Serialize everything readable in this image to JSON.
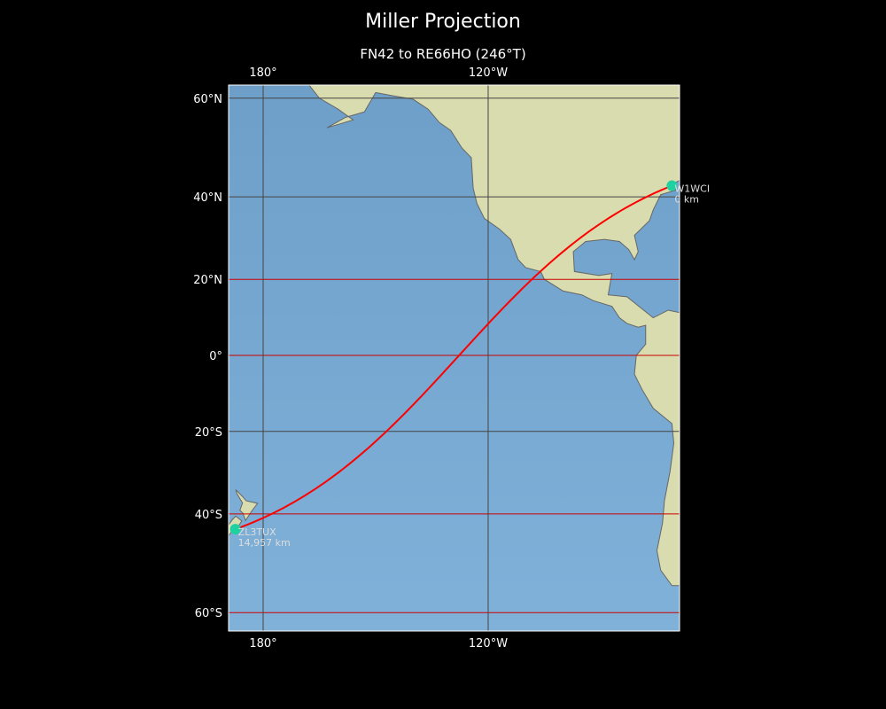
{
  "title": "Miller Projection",
  "subtitle": "FN42 to RE66HO (246°T)",
  "map": {
    "projection": "Miller",
    "extent": {
      "lon_min": 170.8,
      "lon_max": -69,
      "lat_min": -63,
      "lat_max": 62
    },
    "lon_ticks": [
      {
        "lon": 180,
        "label": "180°"
      },
      {
        "lon": -120,
        "label": "120°W"
      }
    ],
    "lat_ticks": [
      {
        "lat": 60,
        "label": "60°N",
        "color": "#444444"
      },
      {
        "lat": 40,
        "label": "40°N",
        "color": "#444444"
      },
      {
        "lat": 20,
        "label": "20°N",
        "color": "#cc0000"
      },
      {
        "lat": 0,
        "label": "0°",
        "color": "#cc0000"
      },
      {
        "lat": -20,
        "label": "20°S",
        "color": "#444444"
      },
      {
        "lat": -40,
        "label": "40°S",
        "color": "#cc0000"
      },
      {
        "lat": -60,
        "label": "60°S",
        "color": "#cc0000"
      }
    ],
    "colors": {
      "ocean": "#6fa3cc",
      "land": "#d9dcae",
      "route": "#ff0000",
      "marker": "#1fd1a0"
    },
    "route": {
      "from": "FN42",
      "to": "RE66HO",
      "bearing": "246°T"
    },
    "stations": [
      {
        "call": "W1WCI",
        "distance": "0 km",
        "lat": 42.5,
        "lon": -71
      },
      {
        "call": "ZL3TUX",
        "distance": "14,957 km",
        "lat": -43.4,
        "lon": 172.6
      }
    ]
  }
}
